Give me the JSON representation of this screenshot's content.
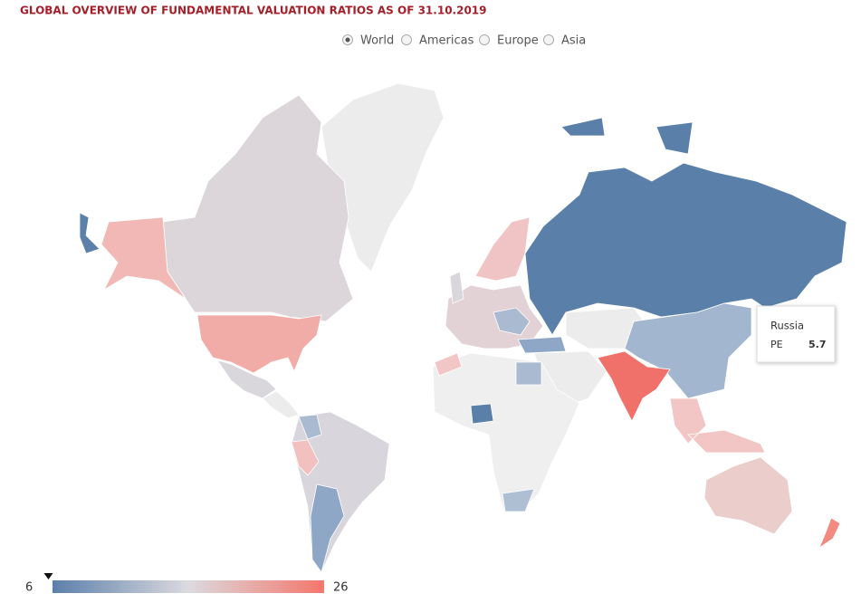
{
  "header": {
    "title": "GLOBAL OVERVIEW OF FUNDAMENTAL VALUATION RATIOS AS OF 31.10.2019"
  },
  "region_filter": {
    "options": [
      "World",
      "Americas",
      "Europe",
      "Asia"
    ],
    "selected": 0
  },
  "tooltip": {
    "country": "Russia",
    "metric": "PE",
    "value": 5.7
  },
  "legend": {
    "min": 6,
    "max": 26
  }
}
